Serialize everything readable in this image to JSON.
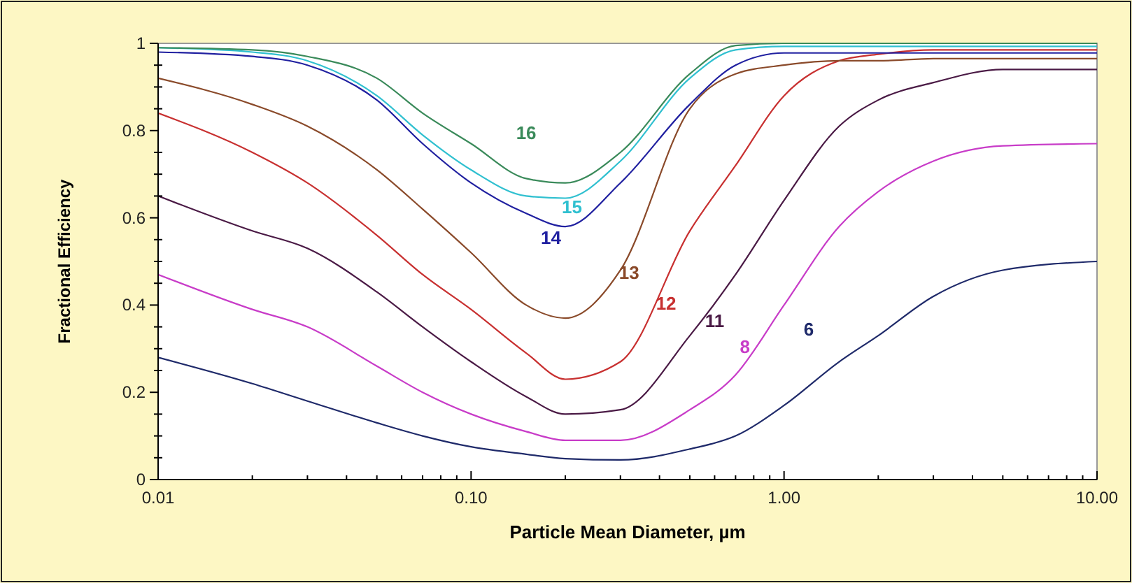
{
  "chart_data": {
    "type": "line",
    "xlabel": "Particle Mean Diameter, µm",
    "ylabel": "Fractional Efficiency",
    "log": "x",
    "grid": false,
    "marker": "none",
    "line_style": "solid",
    "x": [
      0.01,
      0.02,
      0.03,
      0.05,
      0.07,
      0.1,
      0.15,
      0.2,
      0.3,
      0.5,
      0.7,
      1,
      1.5,
      2,
      3,
      5,
      10
    ],
    "xlim": [
      0.01,
      10
    ],
    "xticks": [
      {
        "value": 0.01,
        "label": "0.01"
      },
      {
        "value": 0.02,
        "label": null
      },
      {
        "value": 0.03,
        "label": null
      },
      {
        "value": 0.04,
        "label": null
      },
      {
        "value": 0.05,
        "label": null
      },
      {
        "value": 0.06,
        "label": null
      },
      {
        "value": 0.07,
        "label": null
      },
      {
        "value": 0.08,
        "label": null
      },
      {
        "value": 0.09,
        "label": null
      },
      {
        "value": 0.1,
        "label": "0.10"
      },
      {
        "value": 0.2,
        "label": null
      },
      {
        "value": 0.3,
        "label": null
      },
      {
        "value": 0.4,
        "label": null
      },
      {
        "value": 0.5,
        "label": null
      },
      {
        "value": 0.6,
        "label": null
      },
      {
        "value": 0.7,
        "label": null
      },
      {
        "value": 0.8,
        "label": null
      },
      {
        "value": 0.9,
        "label": null
      },
      {
        "value": 1,
        "label": "1.00"
      },
      {
        "value": 2,
        "label": null
      },
      {
        "value": 3,
        "label": null
      },
      {
        "value": 4,
        "label": null
      },
      {
        "value": 5,
        "label": null
      },
      {
        "value": 6,
        "label": null
      },
      {
        "value": 7,
        "label": null
      },
      {
        "value": 8,
        "label": null
      },
      {
        "value": 9,
        "label": null
      },
      {
        "value": 10,
        "label": "10.00"
      }
    ],
    "ylim": [
      0,
      1
    ],
    "yticks": [
      0,
      {
        "value": 0.05,
        "label": null
      },
      {
        "value": 0.1,
        "label": null
      },
      {
        "value": 0.15,
        "label": null
      },
      0.2,
      {
        "value": 0.25,
        "label": null
      },
      {
        "value": 0.3,
        "label": null
      },
      {
        "value": 0.35,
        "label": null
      },
      0.4,
      {
        "value": 0.45,
        "label": null
      },
      {
        "value": 0.5,
        "label": null
      },
      {
        "value": 0.55,
        "label": null
      },
      0.6,
      {
        "value": 0.65,
        "label": null
      },
      {
        "value": 0.7,
        "label": null
      },
      {
        "value": 0.75,
        "label": null
      },
      0.8,
      {
        "value": 0.85,
        "label": null
      },
      {
        "value": 0.9,
        "label": null
      },
      {
        "value": 0.95,
        "label": null
      },
      1
    ],
    "series": [
      {
        "name": "6",
        "color": "#1f2a6a",
        "values": [
          0.28,
          0.22,
          0.18,
          0.13,
          0.1,
          0.075,
          0.058,
          0.048,
          0.045,
          0.07,
          0.1,
          0.17,
          0.27,
          0.33,
          0.42,
          0.48,
          0.5
        ]
      },
      {
        "name": "8",
        "color": "#c83cc8",
        "values": [
          0.47,
          0.39,
          0.35,
          0.26,
          0.2,
          0.15,
          0.11,
          0.09,
          0.09,
          0.16,
          0.24,
          0.4,
          0.58,
          0.66,
          0.73,
          0.765,
          0.77
        ]
      },
      {
        "name": "11",
        "color": "#4a1a45",
        "values": [
          0.65,
          0.57,
          0.53,
          0.43,
          0.35,
          0.27,
          0.19,
          0.15,
          0.16,
          0.33,
          0.47,
          0.64,
          0.81,
          0.87,
          0.91,
          0.94,
          0.94
        ]
      },
      {
        "name": "12",
        "color": "#c83030",
        "values": [
          0.84,
          0.75,
          0.68,
          0.56,
          0.47,
          0.39,
          0.29,
          0.23,
          0.27,
          0.57,
          0.72,
          0.88,
          0.96,
          0.975,
          0.985,
          0.985,
          0.985
        ]
      },
      {
        "name": "13",
        "color": "#8a4a2a",
        "values": [
          0.92,
          0.86,
          0.81,
          0.71,
          0.62,
          0.52,
          0.4,
          0.37,
          0.48,
          0.85,
          0.93,
          0.95,
          0.96,
          0.96,
          0.965,
          0.965,
          0.965
        ]
      },
      {
        "name": "14",
        "color": "#2020a0",
        "values": [
          0.98,
          0.97,
          0.95,
          0.87,
          0.77,
          0.68,
          0.61,
          0.58,
          0.68,
          0.86,
          0.95,
          0.978,
          0.978,
          0.978,
          0.978,
          0.978,
          0.978
        ]
      },
      {
        "name": "15",
        "color": "#30c0d0",
        "values": [
          0.99,
          0.98,
          0.96,
          0.88,
          0.79,
          0.71,
          0.65,
          0.645,
          0.73,
          0.92,
          0.985,
          0.993,
          0.993,
          0.993,
          0.993,
          0.993,
          0.993
        ]
      },
      {
        "name": "16",
        "color": "#3a8a5a",
        "values": [
          0.99,
          0.985,
          0.97,
          0.92,
          0.84,
          0.77,
          0.69,
          0.68,
          0.75,
          0.93,
          0.995,
          1,
          1,
          1,
          1,
          1,
          1
        ]
      }
    ]
  }
}
